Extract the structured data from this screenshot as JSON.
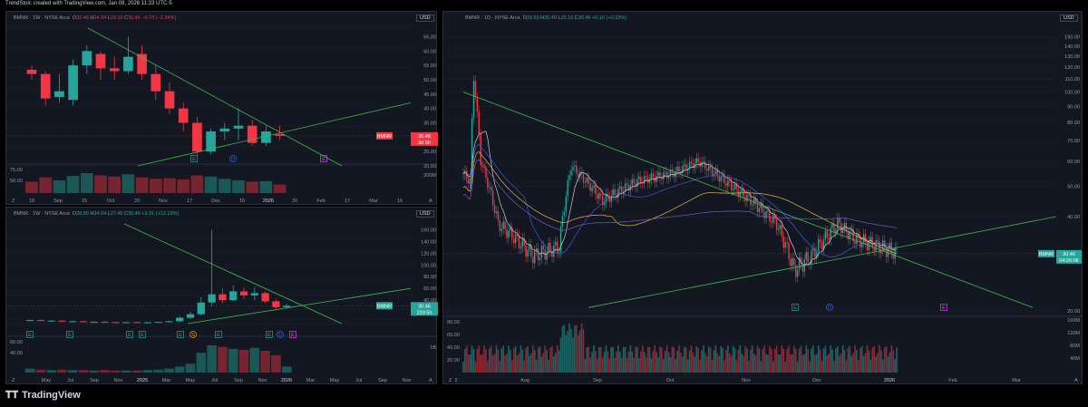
{
  "header": {
    "caption": "TrendStoic created with TradingView.com, Jan 08, 2026 11:33 UTC-5"
  },
  "footer": {
    "brand": "TradingView",
    "logo_icon": "tradingview-logo-icon"
  },
  "colors": {
    "up": "#26a69a",
    "down": "#f23645",
    "trend": "#3fb94e",
    "ma1": "#c9ccd3",
    "ma2": "#3b5bdb",
    "ma3": "#e8b84a",
    "ma4": "#7e57c2",
    "panel": "#131722",
    "grid": "#1e222d",
    "text": "#9598a1"
  },
  "chart_data": [
    {
      "type": "candlestick",
      "title": "BMNR · 1W · NYSE Arca",
      "ohlc_legend": {
        "o": "O",
        "o_val": "32.48",
        "h": "H",
        "h_val": "34.04",
        "l": "L",
        "l_val": "29.16",
        "c": "C",
        "c_val": "30.46",
        "chg": "−0.73 (−2.34%)"
      },
      "currency": "USD",
      "y_ticks": [
        "65.00",
        "60.00",
        "55.00",
        "50.00",
        "45.00",
        "40.00",
        "35.00",
        "30.00",
        "25.00",
        "20.00"
      ],
      "ylim": [
        20,
        68
      ],
      "x_ticks": [
        "18",
        "Sep",
        "15",
        "Oct",
        "20",
        "Nov",
        "17",
        "Dec",
        "15",
        "2026",
        "20",
        "Feb",
        "17",
        "Mar",
        "16"
      ],
      "last_price": {
        "label": "BMNR",
        "value": "30.46",
        "timer": "3d 5h"
      },
      "vol_ticks": [
        "75.00",
        "50.00"
      ],
      "vol_right_tick": "200M",
      "candles": [
        {
          "o": 53.5,
          "h": 55,
          "l": 50,
          "c": 52
        },
        {
          "o": 52,
          "h": 53,
          "l": 41,
          "c": 43.5
        },
        {
          "o": 44,
          "h": 52,
          "l": 42,
          "c": 46
        },
        {
          "o": 43,
          "h": 57,
          "l": 41,
          "c": 55
        },
        {
          "o": 55,
          "h": 62,
          "l": 52,
          "c": 60
        },
        {
          "o": 59,
          "h": 60,
          "l": 50,
          "c": 54
        },
        {
          "o": 54,
          "h": 58,
          "l": 50,
          "c": 53
        },
        {
          "o": 53,
          "h": 65,
          "l": 52,
          "c": 58
        },
        {
          "o": 59,
          "h": 62,
          "l": 50,
          "c": 52
        },
        {
          "o": 52,
          "h": 55,
          "l": 43,
          "c": 46
        },
        {
          "o": 46,
          "h": 49,
          "l": 38,
          "c": 40
        },
        {
          "o": 40,
          "h": 42,
          "l": 32,
          "c": 35
        },
        {
          "o": 35,
          "h": 37,
          "l": 24,
          "c": 25
        },
        {
          "o": 25,
          "h": 33,
          "l": 24,
          "c": 32
        },
        {
          "o": 32,
          "h": 35,
          "l": 29,
          "c": 33
        },
        {
          "o": 33,
          "h": 40,
          "l": 29,
          "c": 34
        },
        {
          "o": 34,
          "h": 36,
          "l": 27,
          "c": 28
        },
        {
          "o": 28,
          "h": 34,
          "l": 27,
          "c": 32
        },
        {
          "o": 31,
          "h": 34,
          "l": 29,
          "c": 30.46
        }
      ],
      "volumes": [
        40,
        55,
        45,
        60,
        70,
        62,
        58,
        66,
        55,
        50,
        52,
        48,
        62,
        58,
        50,
        45,
        40,
        42,
        30
      ],
      "event_markers": [
        "E",
        "D",
        "E"
      ]
    },
    {
      "type": "candlestick",
      "title": "BMNR · 1W · NYSE Arca",
      "ohlc_legend": {
        "o": "O",
        "o_val": "28.80",
        "h": "H",
        "h_val": "34.04",
        "l": "L",
        "l_val": "27.46",
        "c": "C",
        "c_val": "30.46",
        "chg": "+3.31 (+12.19%)"
      },
      "currency": "USD",
      "y_ticks": [
        "160.00",
        "140.00",
        "120.00",
        "100.00",
        "80.00",
        "60.00",
        "40.00",
        "20.00"
      ],
      "ylim": [
        0,
        170
      ],
      "x_ticks": [
        "May",
        "Jul",
        "Sep",
        "Nov",
        "2025",
        "Mar",
        "May",
        "Jul",
        "Sep",
        "Nov",
        "2026",
        "Mar",
        "May",
        "Jul",
        "Sep",
        "Nov"
      ],
      "last_price": {
        "label": "BMNR",
        "value": "30.46",
        "timer": "22d 5h"
      },
      "vol_ticks": [
        "60.00",
        "40.00"
      ],
      "vol_right_tick": "1B",
      "candles": [
        {
          "o": 5,
          "h": 7,
          "l": 4,
          "c": 6
        },
        {
          "o": 6,
          "h": 7,
          "l": 4,
          "c": 4.5
        },
        {
          "o": 4.5,
          "h": 6,
          "l": 3,
          "c": 5
        },
        {
          "o": 5,
          "h": 6,
          "l": 3,
          "c": 3.5
        },
        {
          "o": 3.5,
          "h": 5,
          "l": 2,
          "c": 4
        },
        {
          "o": 4,
          "h": 5,
          "l": 2,
          "c": 2.5
        },
        {
          "o": 2.5,
          "h": 4,
          "l": 2,
          "c": 3
        },
        {
          "o": 3,
          "h": 4,
          "l": 2,
          "c": 2.5
        },
        {
          "o": 2.5,
          "h": 3,
          "l": 1.5,
          "c": 2
        },
        {
          "o": 2,
          "h": 3,
          "l": 1.5,
          "c": 2.5
        },
        {
          "o": 2.5,
          "h": 3,
          "l": 1.5,
          "c": 2
        },
        {
          "o": 2,
          "h": 3,
          "l": 1.5,
          "c": 2.2
        },
        {
          "o": 2.2,
          "h": 3,
          "l": 1.5,
          "c": 2.8
        },
        {
          "o": 3,
          "h": 5,
          "l": 2,
          "c": 4
        },
        {
          "o": 4,
          "h": 12,
          "l": 3,
          "c": 10
        },
        {
          "o": 10,
          "h": 20,
          "l": 8,
          "c": 16
        },
        {
          "o": 16,
          "h": 45,
          "l": 14,
          "c": 36
        },
        {
          "o": 36,
          "h": 160,
          "l": 30,
          "c": 50
        },
        {
          "o": 50,
          "h": 60,
          "l": 35,
          "c": 40
        },
        {
          "o": 40,
          "h": 65,
          "l": 38,
          "c": 55
        },
        {
          "o": 55,
          "h": 62,
          "l": 42,
          "c": 48
        },
        {
          "o": 48,
          "h": 62,
          "l": 40,
          "c": 52
        },
        {
          "o": 52,
          "h": 55,
          "l": 35,
          "c": 38
        },
        {
          "o": 38,
          "h": 42,
          "l": 25,
          "c": 28
        },
        {
          "o": 28,
          "h": 34,
          "l": 27,
          "c": 30.46
        }
      ],
      "volumes": [
        8,
        6,
        5,
        6,
        5,
        5,
        4,
        5,
        4,
        4,
        4,
        5,
        6,
        8,
        12,
        18,
        40,
        55,
        52,
        48,
        46,
        50,
        44,
        35,
        12
      ],
      "event_markers": [
        "E",
        "E",
        "E",
        "E",
        "E",
        "S",
        "E",
        "E",
        "D",
        "E"
      ]
    },
    {
      "type": "candlestick",
      "title": "BMNR · 1D · NYSE Arca",
      "ohlc_legend": {
        "o": "O",
        "o_val": "29.60",
        "h": "H",
        "h_val": "30.49",
        "l": "L",
        "l_val": "29.16",
        "c": "C",
        "c_val": "30.46",
        "chg": "+0.10 (+0.33%)"
      },
      "currency": "USD",
      "y_ticks": [
        "150.00",
        "140.00",
        "130.00",
        "120.00",
        "110.00",
        "100.00",
        "90.00",
        "80.00",
        "70.00",
        "60.00",
        "50.00",
        "40.00",
        "30.00",
        "20.00"
      ],
      "y_tick_values": [
        150,
        140,
        130,
        120,
        110,
        100,
        90,
        80,
        70,
        60,
        50,
        40,
        30,
        20
      ],
      "y_scale": "log",
      "ylim": [
        20,
        160
      ],
      "x_ticks": [
        "2",
        "Aug",
        "Sep",
        "Oct",
        "Nov",
        "Dec",
        "2026",
        "Feb",
        "Mar"
      ],
      "last_price": {
        "label": "BMNR",
        "value": "30.46",
        "timer": "04:26:08"
      },
      "vol_ticks": [
        "80.00",
        "60.00",
        "40.00",
        "20.00"
      ],
      "vol_right_ticks": [
        "160M",
        "120M",
        "80M",
        "40M"
      ],
      "event_markers": [
        "E",
        "D",
        "E"
      ]
    }
  ]
}
